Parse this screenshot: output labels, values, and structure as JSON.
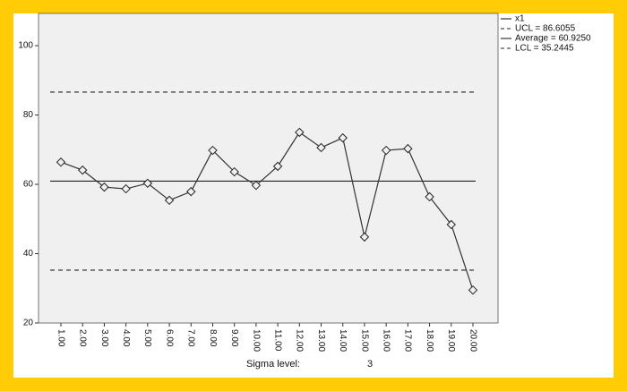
{
  "chart_data": {
    "type": "line",
    "categories": [
      "1.00",
      "2.00",
      "3.00",
      "4.00",
      "5.00",
      "6.00",
      "7.00",
      "8.00",
      "9.00",
      "10.00",
      "11.00",
      "12.00",
      "13.00",
      "14.00",
      "15.00",
      "16.00",
      "17.00",
      "18.00",
      "19.00",
      "20.00"
    ],
    "series": [
      {
        "name": "x1",
        "color": "#333333",
        "values": [
          66.4,
          64.1,
          59.2,
          58.7,
          60.3,
          55.4,
          57.9,
          69.8,
          63.6,
          59.7,
          65.2,
          75.0,
          70.6,
          73.4,
          44.8,
          69.8,
          70.3,
          56.4,
          48.4,
          29.5
        ]
      }
    ],
    "control_lines": [
      {
        "label": "UCL = 86.6055",
        "value": 86.6055,
        "dashed": true
      },
      {
        "label": "Average = 60.9250",
        "value": 60.925,
        "dashed": false
      },
      {
        "label": "LCL = 35.2445",
        "value": 35.2445,
        "dashed": true
      }
    ],
    "ylim": [
      20,
      109.3
    ],
    "yticks": [
      20,
      40,
      60,
      80,
      100
    ],
    "footer_label": "Sigma level:",
    "sigma": 3
  }
}
